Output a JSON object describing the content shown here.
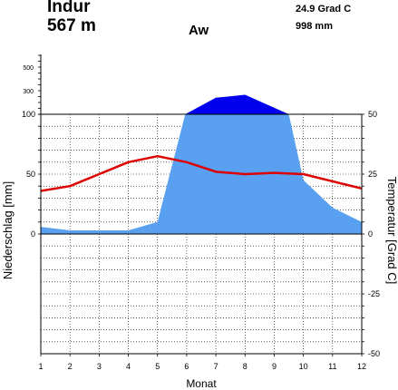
{
  "header": {
    "station": "Indur",
    "elevation": "567 m",
    "climate_class": "Aw",
    "mean_temp": "24.9 Grad C",
    "total_precip": "998 mm"
  },
  "colors": {
    "precip_fill": "#5aa0f0",
    "precip_excess_fill": "#0000ee",
    "temp_line": "#dd0000",
    "grid": "#000000"
  },
  "chart_data": {
    "type": "area",
    "x": [
      1,
      2,
      3,
      4,
      5,
      6,
      7,
      8,
      9,
      10,
      11,
      12
    ],
    "x_ticks": [
      "1",
      "2",
      "3",
      "4",
      "5",
      "6",
      "7",
      "8",
      "9",
      "10",
      "11",
      "12"
    ],
    "xlabel": "Monat",
    "ylabel_left": "Niederschlag [mm]",
    "ylabel_right": "Temperatur [Grad C]",
    "left_ticks_lower": [
      "0",
      "50",
      "100"
    ],
    "left_ticks_upper": [
      "300",
      "500"
    ],
    "right_ticks": [
      "50",
      "25",
      "0",
      "-25",
      "-50"
    ],
    "series": [
      {
        "name": "Niederschlag",
        "unit": "mm",
        "kind": "area",
        "x": [
          1,
          2,
          3,
          4,
          5,
          5.95,
          7,
          8,
          9.5,
          10,
          11,
          12
        ],
        "values": [
          6,
          3,
          3,
          3,
          10,
          100,
          240,
          265,
          100,
          45,
          22,
          10
        ]
      },
      {
        "name": "Temperatur",
        "unit": "Grad C",
        "kind": "line",
        "x": [
          1,
          2,
          3,
          4,
          5,
          6,
          7,
          8,
          9,
          10,
          11,
          12
        ],
        "values": [
          18,
          20,
          25,
          30,
          32.5,
          30,
          26,
          25,
          25.5,
          25,
          22,
          19
        ]
      }
    ],
    "ylim_left_lower": [
      0,
      100
    ],
    "ylim_right": [
      -50,
      50
    ],
    "grid": true
  }
}
